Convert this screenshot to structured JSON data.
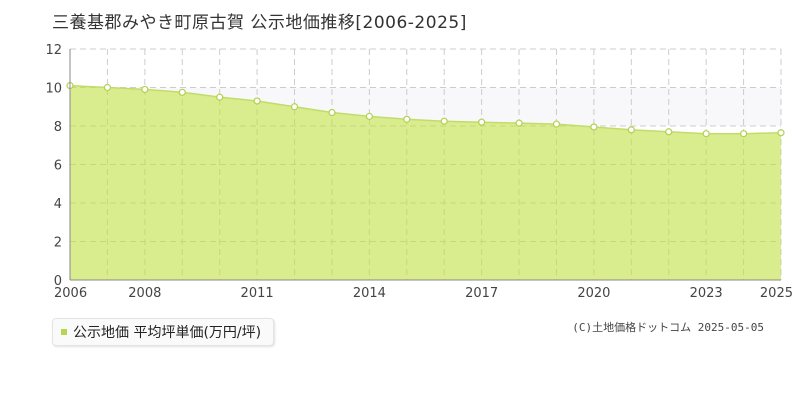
{
  "chart_data": {
    "type": "area",
    "title": "三養基郡みやき町原古賀 公示地価推移[2006-2025]",
    "x": [
      2006,
      2007,
      2008,
      2009,
      2010,
      2011,
      2012,
      2013,
      2014,
      2015,
      2016,
      2017,
      2018,
      2019,
      2020,
      2021,
      2022,
      2023,
      2024,
      2025
    ],
    "series": [
      {
        "name": "公示地価 平均坪単価(万円/坪)",
        "values": [
          10.1,
          10.0,
          9.9,
          9.75,
          9.5,
          9.3,
          9.0,
          8.7,
          8.5,
          8.35,
          8.25,
          8.2,
          8.15,
          8.1,
          7.95,
          7.8,
          7.7,
          7.6,
          7.6,
          7.65
        ]
      }
    ],
    "xlim": [
      2006,
      2025
    ],
    "ylim": [
      0,
      12
    ],
    "x_tick_labels": [
      "2006",
      "2008",
      "2011",
      "2014",
      "2017",
      "2020",
      "2023",
      "2025"
    ],
    "y_tick_labels": [
      "0",
      "2",
      "4",
      "6",
      "8",
      "10",
      "12"
    ],
    "grid": true,
    "legend_position": "bottom-left",
    "colors": {
      "area_fill": "#d9ec8e",
      "line": "#c2dc6a",
      "marker_fill": "#ffffff",
      "marker_stroke": "#b2d050",
      "grid": "#cccccc",
      "band": "#f8f8fb"
    }
  },
  "legend": {
    "label": "公示地価 平均坪単価(万円/坪)"
  },
  "copyright": "(C)土地価格ドットコム 2025-05-05"
}
